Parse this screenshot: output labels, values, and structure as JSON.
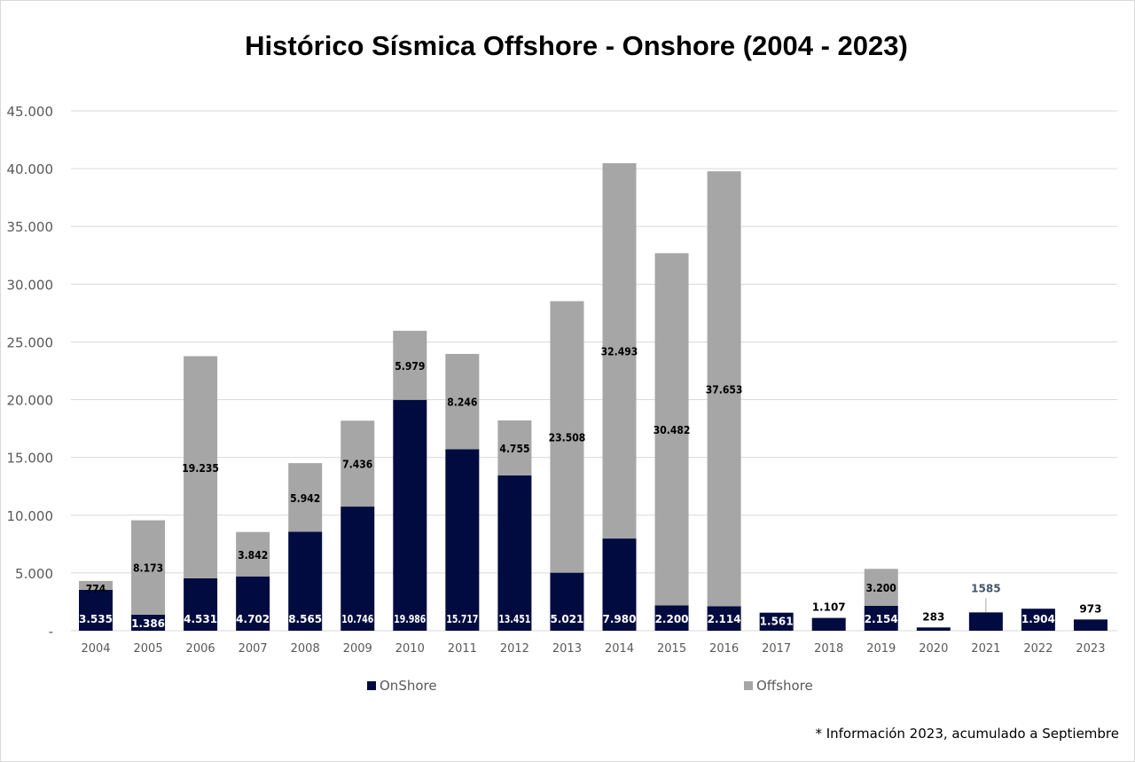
{
  "chart_data": {
    "type": "bar",
    "stacked": true,
    "title": "Histórico Sísmica Offshore - Onshore (2004 - 2023)",
    "categories": [
      "2004",
      "2005",
      "2006",
      "2007",
      "2008",
      "2009",
      "2010",
      "2011",
      "2012",
      "2013",
      "2014",
      "2015",
      "2016",
      "2017",
      "2018",
      "2019",
      "2020",
      "2021",
      "2022",
      "2023"
    ],
    "series": [
      {
        "name": "OnShore",
        "color": "#020b3f",
        "values": [
          3535,
          1386,
          4531,
          4702,
          8565,
          10746,
          19986,
          15717,
          13451,
          5021,
          7980,
          2200,
          2114,
          1561,
          1107,
          2154,
          283,
          1585,
          1904,
          973
        ],
        "labels": [
          "3.535",
          "1.386",
          "4.531",
          "4.702",
          "8.565",
          "10.746",
          "19.986",
          "15.717",
          "13.451",
          "5.021",
          "7.980",
          "2.200",
          "2.114",
          "1.561",
          "1.107",
          "2.154",
          "283",
          "1585",
          "1.904",
          "973"
        ]
      },
      {
        "name": "Offshore",
        "color": "#a6a6a6",
        "values": [
          774,
          8173,
          19235,
          3842,
          5942,
          7436,
          5979,
          8246,
          4755,
          23508,
          32493,
          30482,
          37653,
          0,
          0,
          3200,
          0,
          0,
          0,
          0
        ],
        "labels": [
          "774",
          "8.173",
          "19.235",
          "3.842",
          "5.942",
          "7.436",
          "5.979",
          "8.246",
          "4.755",
          "23.508",
          "32.493",
          "30.482",
          "37.653",
          "",
          "",
          "3.200",
          "",
          "",
          "",
          ""
        ]
      }
    ],
    "ylim": [
      0,
      45000
    ],
    "yticks": [
      0,
      5000,
      10000,
      15000,
      20000,
      25000,
      30000,
      35000,
      40000,
      45000
    ],
    "ytick_labels": [
      "-",
      "5.000",
      "10.000",
      "15.000",
      "20.000",
      "25.000",
      "30.000",
      "35.000",
      "40.000",
      "45.000"
    ],
    "grid": true,
    "legend_position": "bottom",
    "xlabel": "",
    "ylabel": ""
  },
  "footnote": "* Información 2023, acumulado a Septiembre"
}
